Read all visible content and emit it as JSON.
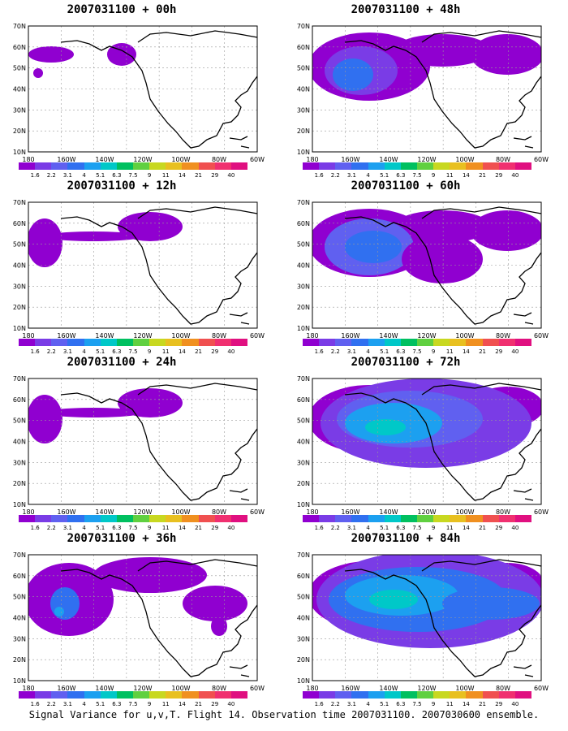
{
  "panels": [
    {
      "title": "2007031100 + 00h",
      "level": 0
    },
    {
      "title": "2007031100 + 48h",
      "level": 3
    },
    {
      "title": "2007031100 + 12h",
      "level": 1
    },
    {
      "title": "2007031100 + 60h",
      "level": 4
    },
    {
      "title": "2007031100 + 24h",
      "level": 1
    },
    {
      "title": "2007031100 + 72h",
      "level": 5
    },
    {
      "title": "2007031100 + 36h",
      "level": 2
    },
    {
      "title": "2007031100 + 84h",
      "level": 6
    }
  ],
  "axes": {
    "lat_labels": [
      "70N",
      "60N",
      "50N",
      "40N",
      "30N",
      "20N",
      "10N"
    ],
    "lon_labels": [
      "180",
      "160W",
      "140W",
      "120W",
      "100W",
      "80W",
      "60W"
    ]
  },
  "colorbar": {
    "labels": [
      "1.6",
      "2.2",
      "3.1",
      "4",
      "5.1",
      "6.3",
      "7.5",
      "9",
      "11",
      "14",
      "21",
      "29",
      "40"
    ],
    "colors": [
      "#9000d0",
      "#7a3ce6",
      "#6060f0",
      "#3070f0",
      "#1ca0f0",
      "#00c8c8",
      "#00c060",
      "#60d040",
      "#c8d820",
      "#e8c020",
      "#f09020",
      "#f05050",
      "#f03070",
      "#e01080"
    ]
  },
  "caption": "Signal Variance for u,v,T. Flight 14. Observation time 2007031100. 2007030600 ensemble."
}
